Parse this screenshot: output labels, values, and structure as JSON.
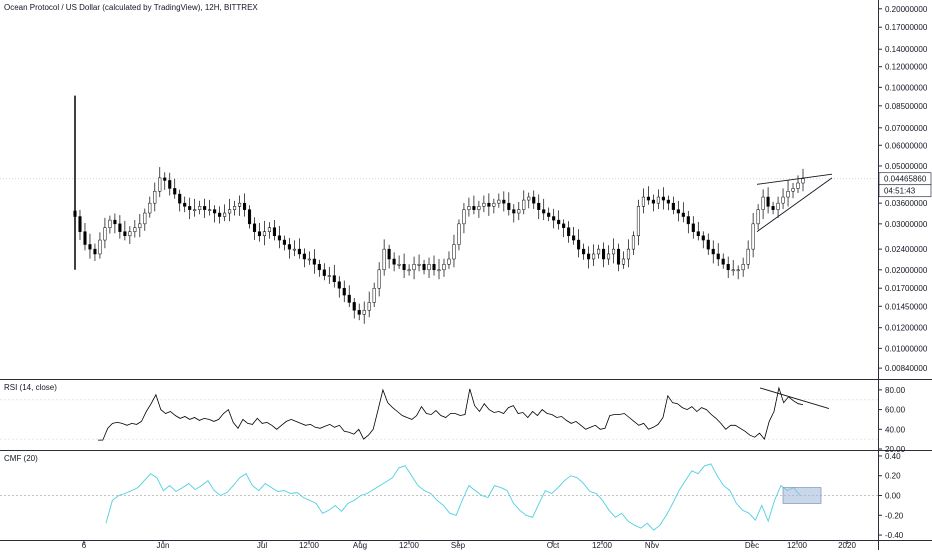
{
  "chart": {
    "title": "Ocean Protocol / US Dollar (calculated by TradingView), 12H, BITTREX",
    "current_price": "0.04465860",
    "countdown": "04:51:43",
    "colors": {
      "candle": "#000000",
      "cmf": "#4dd0e1",
      "rsi": "#000000",
      "grid": "#e0e3eb",
      "highlight": "#9bb6d9"
    }
  },
  "panes": {
    "rsi_label": "RSI (14, close)",
    "cmf_label": "CMF (20)"
  },
  "chart_data": [
    {
      "type": "candlestick",
      "scale": "log",
      "y_ticks": [
        "0.20000000",
        "0.17000000",
        "0.14000000",
        "0.12000000",
        "0.10000000",
        "0.08500000",
        "0.07000000",
        "0.06000000",
        "0.05000000",
        "0.04465860",
        "0.03600000",
        "0.03000000",
        "0.02400000",
        "0.02000000",
        "0.01700000",
        "0.01450000",
        "0.01200000",
        "0.01000000",
        "0.00840000"
      ],
      "x_ticks": [
        "6",
        "Jun",
        "Jul",
        "12:00",
        "Aug",
        "12:00",
        "Sep",
        "Oct",
        "12:00",
        "Nov",
        "Dec",
        "12:00",
        "2020"
      ],
      "close_series": [
        0.032,
        0.028,
        0.025,
        0.024,
        0.023,
        0.026,
        0.029,
        0.031,
        0.03,
        0.028,
        0.027,
        0.028,
        0.029,
        0.03,
        0.033,
        0.036,
        0.04,
        0.045,
        0.044,
        0.041,
        0.039,
        0.036,
        0.035,
        0.034,
        0.034,
        0.035,
        0.034,
        0.034,
        0.033,
        0.032,
        0.033,
        0.034,
        0.035,
        0.036,
        0.034,
        0.03,
        0.028,
        0.027,
        0.028,
        0.029,
        0.027,
        0.026,
        0.025,
        0.024,
        0.024,
        0.023,
        0.022,
        0.022,
        0.021,
        0.02,
        0.019,
        0.019,
        0.018,
        0.017,
        0.016,
        0.015,
        0.014,
        0.0135,
        0.014,
        0.015,
        0.017,
        0.02,
        0.024,
        0.022,
        0.021,
        0.021,
        0.02,
        0.02,
        0.021,
        0.021,
        0.02,
        0.021,
        0.02,
        0.02,
        0.021,
        0.022,
        0.025,
        0.03,
        0.034,
        0.035,
        0.034,
        0.035,
        0.036,
        0.035,
        0.036,
        0.037,
        0.036,
        0.034,
        0.033,
        0.034,
        0.037,
        0.038,
        0.036,
        0.034,
        0.033,
        0.032,
        0.031,
        0.03,
        0.029,
        0.027,
        0.026,
        0.024,
        0.023,
        0.022,
        0.023,
        0.024,
        0.022,
        0.023,
        0.024,
        0.021,
        0.022,
        0.024,
        0.027,
        0.035,
        0.038,
        0.037,
        0.036,
        0.038,
        0.037,
        0.036,
        0.034,
        0.033,
        0.032,
        0.03,
        0.028,
        0.027,
        0.026,
        0.024,
        0.023,
        0.022,
        0.021,
        0.02,
        0.02,
        0.02,
        0.021,
        0.024,
        0.03,
        0.034,
        0.038,
        0.035,
        0.034,
        0.036,
        0.038,
        0.04,
        0.041,
        0.043,
        0.0447
      ],
      "trendlines": [
        {
          "from": [
            "Dec",
            0.0425
          ],
          "to": [
            "2020",
            0.0465
          ]
        },
        {
          "from": [
            "Dec",
            0.028
          ],
          "to": [
            "2020",
            0.045
          ]
        }
      ]
    },
    {
      "type": "line",
      "name": "RSI (14, close)",
      "y_ticks": [
        "80.00",
        "60.00",
        "40.00",
        "20.00"
      ],
      "ylim": [
        20,
        90
      ],
      "values": [
        29,
        29,
        41,
        46,
        47,
        46,
        44,
        46,
        45,
        48,
        58,
        66,
        75,
        60,
        56,
        58,
        54,
        51,
        53,
        50,
        52,
        49,
        51,
        50,
        48,
        50,
        56,
        60,
        47,
        41,
        50,
        46,
        45,
        51,
        46,
        47,
        44,
        40,
        44,
        48,
        50,
        48,
        46,
        44,
        45,
        42,
        41,
        43,
        45,
        42,
        44,
        38,
        37,
        35,
        40,
        30,
        34,
        40,
        60,
        80,
        67,
        62,
        58,
        54,
        52,
        50,
        54,
        63,
        56,
        55,
        59,
        54,
        52,
        56,
        56,
        54,
        55,
        81,
        64,
        58,
        66,
        60,
        57,
        58,
        56,
        62,
        64,
        56,
        57,
        52,
        58,
        54,
        60,
        56,
        55,
        52,
        53,
        49,
        46,
        48,
        44,
        40,
        42,
        44,
        40,
        41,
        54,
        55,
        55,
        56,
        52,
        48,
        44,
        46,
        40,
        42,
        45,
        52,
        74,
        67,
        66,
        62,
        60,
        63,
        58,
        62,
        60,
        55,
        51,
        46,
        40,
        44,
        44,
        41,
        38,
        34,
        32,
        36,
        30,
        48,
        58,
        82,
        67,
        73,
        69,
        66,
        65
      ]
    },
    {
      "type": "line",
      "name": "CMF (20)",
      "y_ticks": [
        "0.40",
        "0.20",
        "0.00",
        "-0.20",
        "-0.40"
      ],
      "ylim": [
        -0.45,
        0.45
      ],
      "values": [
        -0.28,
        -0.05,
        0.0,
        0.02,
        0.05,
        0.08,
        0.15,
        0.22,
        0.18,
        0.05,
        0.1,
        0.04,
        0.08,
        0.12,
        0.06,
        0.1,
        0.15,
        0.05,
        0.0,
        0.03,
        0.1,
        0.18,
        0.22,
        0.1,
        0.05,
        0.12,
        0.08,
        0.04,
        0.05,
        0.02,
        0.03,
        -0.02,
        -0.05,
        -0.08,
        -0.18,
        -0.15,
        -0.1,
        -0.16,
        -0.08,
        -0.05,
        0.0,
        0.02,
        0.06,
        0.1,
        0.14,
        0.18,
        0.28,
        0.3,
        0.2,
        0.1,
        0.05,
        0.02,
        -0.05,
        -0.1,
        -0.18,
        -0.2,
        -0.04,
        0.1,
        0.05,
        0.0,
        -0.02,
        0.1,
        0.08,
        0.05,
        -0.08,
        -0.15,
        -0.2,
        -0.22,
        -0.08,
        0.05,
        0.02,
        0.08,
        0.15,
        0.2,
        0.18,
        0.12,
        0.04,
        0.02,
        -0.05,
        -0.15,
        -0.22,
        -0.18,
        -0.26,
        -0.3,
        -0.33,
        -0.28,
        -0.35,
        -0.3,
        -0.2,
        -0.08,
        0.05,
        0.15,
        0.25,
        0.22,
        0.3,
        0.32,
        0.2,
        0.1,
        0.05,
        -0.08,
        -0.15,
        -0.18,
        -0.25,
        -0.1,
        -0.26,
        -0.05,
        0.1,
        0.05,
        0.08,
        0.0
      ],
      "highlight_box": {
        "x_from": "Dec",
        "x_to": "12:00",
        "y_from": -0.08,
        "y_to": 0.08
      }
    }
  ]
}
